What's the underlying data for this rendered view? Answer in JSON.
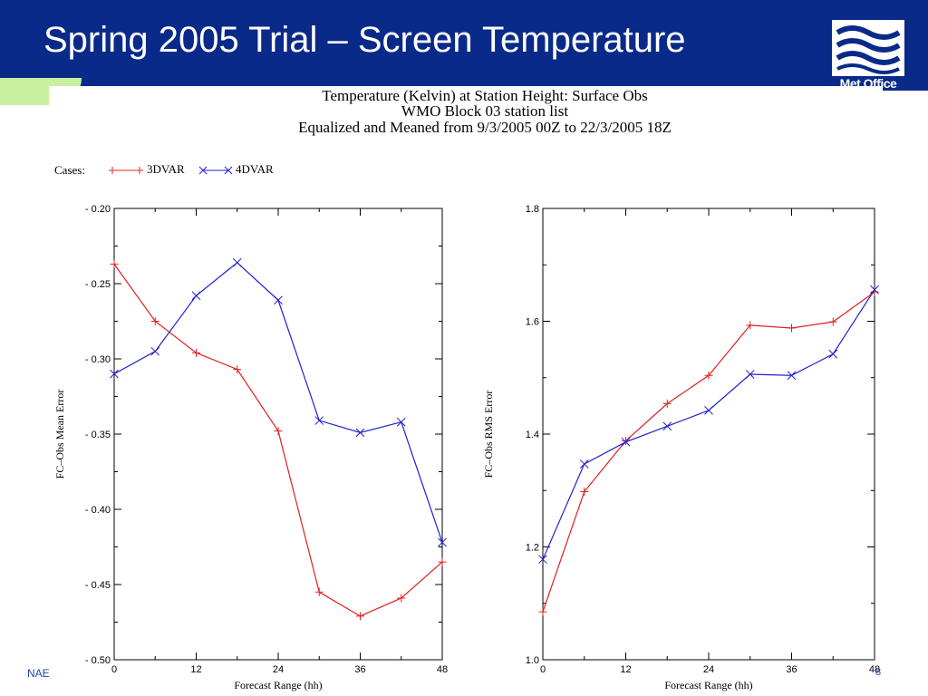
{
  "slide": {
    "title": "Spring 2005 Trial – Screen Temperature",
    "logo_text": "Met Office",
    "footer_left": "NAE",
    "page_number": "8"
  },
  "colors": {
    "header_bg": "#0a2a8a",
    "series_3dvar": "#e02020",
    "series_4dvar": "#2020d0"
  },
  "figure": {
    "title_lines": [
      "Temperature (Kelvin) at Station Height:  Surface Obs",
      "WMO Block 03 station list",
      "Equalized and Meaned from 9/3/2005 00Z to 22/3/2005 18Z"
    ],
    "legend_label": "Cases:",
    "legend_position": "top-left"
  },
  "chart_data": [
    {
      "type": "line",
      "x": [
        0,
        6,
        12,
        18,
        24,
        30,
        36,
        42,
        48
      ],
      "xlim": [
        0,
        48
      ],
      "xticks": [
        0,
        12,
        24,
        36,
        48
      ],
      "ylim": [
        -0.5,
        -0.2
      ],
      "yticks": [
        -0.2,
        -0.25,
        -0.3,
        -0.35,
        -0.4,
        -0.45,
        -0.5
      ],
      "ytick_labels": [
        "- 0.20",
        "- 0.25",
        "- 0.30",
        "- 0.35",
        "- 0.40",
        "- 0.45",
        "- 0.50"
      ],
      "xlabel": "Forecast Range (hh)",
      "ylabel": "FC–Obs Mean Error",
      "series": [
        {
          "name": "3DVAR",
          "marker": "+",
          "values": [
            -0.237,
            -0.275,
            -0.296,
            -0.307,
            -0.348,
            -0.455,
            -0.471,
            -0.459,
            -0.435
          ]
        },
        {
          "name": "4DVAR",
          "marker": "x",
          "values": [
            -0.31,
            -0.295,
            -0.258,
            -0.236,
            -0.261,
            -0.341,
            -0.349,
            -0.342,
            -0.422
          ]
        }
      ]
    },
    {
      "type": "line",
      "x": [
        0,
        6,
        12,
        18,
        24,
        30,
        36,
        42,
        48
      ],
      "xlim": [
        0,
        48
      ],
      "xticks": [
        0,
        12,
        24,
        36,
        48
      ],
      "ylim": [
        1.0,
        1.8
      ],
      "yticks": [
        1.0,
        1.2,
        1.4,
        1.6,
        1.8
      ],
      "ytick_labels": [
        "1.0",
        "1.2",
        "1.4",
        "1.6",
        "1.8"
      ],
      "xlabel": "Forecast Range (hh)",
      "ylabel": "FC–Obs RMS Error",
      "series": [
        {
          "name": "3DVAR",
          "marker": "+",
          "values": [
            1.085,
            1.298,
            1.388,
            1.454,
            1.504,
            1.593,
            1.588,
            1.599,
            1.652
          ]
        },
        {
          "name": "4DVAR",
          "marker": "x",
          "values": [
            1.178,
            1.347,
            1.386,
            1.414,
            1.442,
            1.506,
            1.504,
            1.542,
            1.656
          ]
        }
      ]
    }
  ]
}
